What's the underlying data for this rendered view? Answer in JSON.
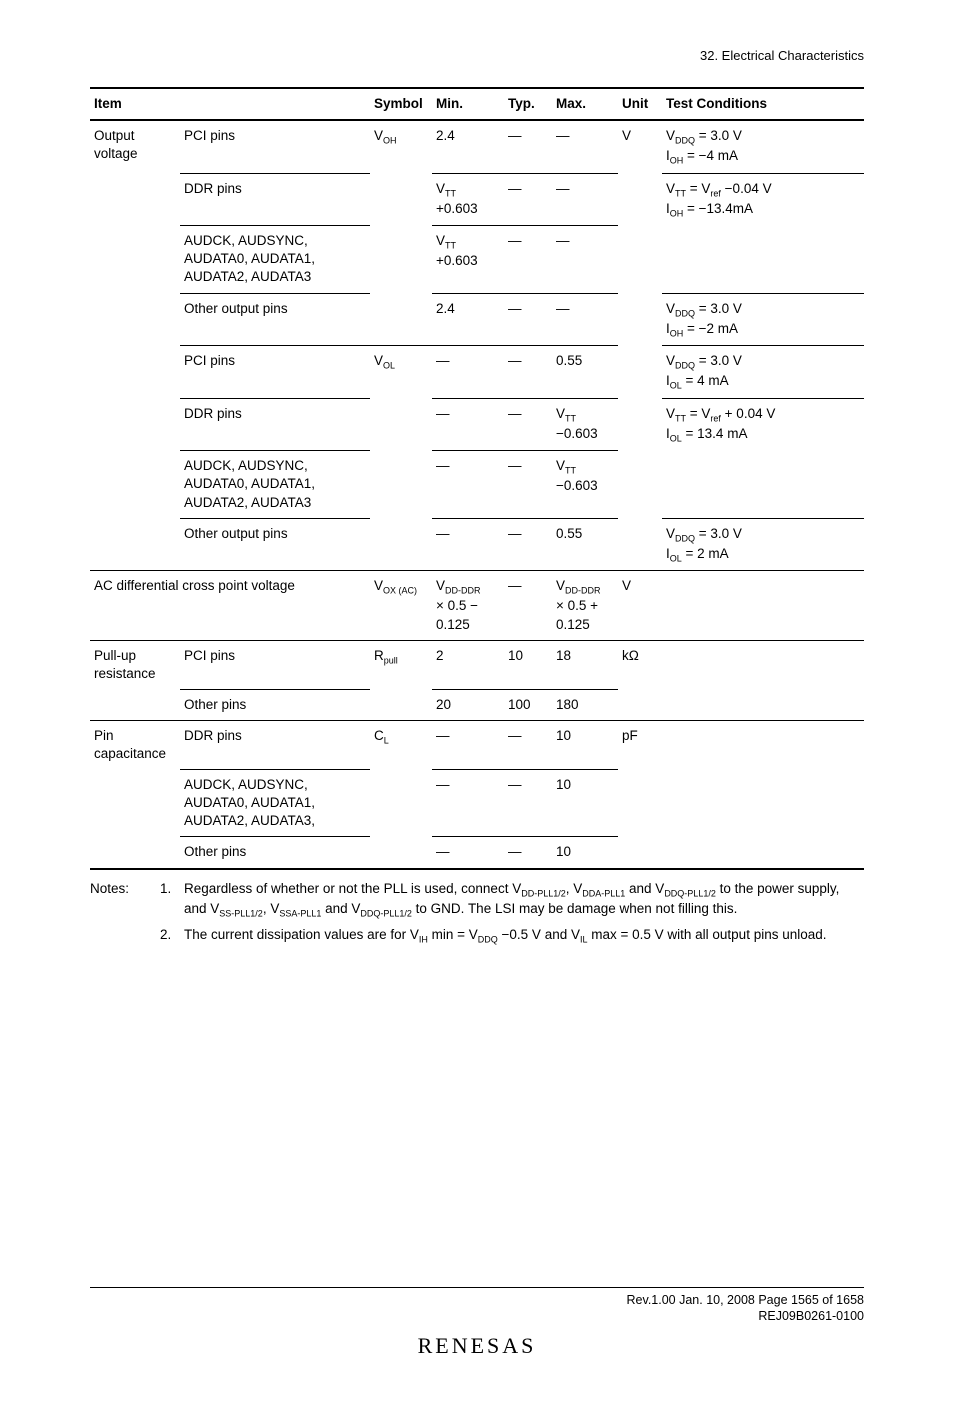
{
  "header": {
    "context": "32.   Electrical Characteristics"
  },
  "columns": [
    "Item",
    "",
    "Symbol",
    "Min.",
    "Typ.",
    "Max.",
    "Unit",
    "Test Conditions"
  ],
  "rows": [
    {
      "item": "Output voltage",
      "desc": "PCI pins",
      "sym": "V<sub>OH</sub>",
      "min": "2.4",
      "typ": "—",
      "max": "—",
      "unit": "V",
      "cond": "V<sub>DDQ</sub> = 3.0 V<br>I<sub>OH</sub> = −4 mA",
      "top": "thick"
    },
    {
      "item": "",
      "desc": "DDR pins",
      "sym": "",
      "min": "V<sub>TT</sub><br>+0.603",
      "typ": "—",
      "max": "—",
      "unit": "",
      "cond": "V<sub>TT</sub> = V<sub>ref</sub> −0.04 V<br>I<sub>OH</sub> = −13.4mA",
      "top": "thin",
      "cells": "desc,min,typ,max,cond"
    },
    {
      "item": "",
      "desc": "AUDCK, AUDSYNC, AUDATA0, AUDATA1, AUDATA2, AUDATA3",
      "sym": "",
      "min": "V<sub>TT</sub><br>+0.603",
      "typ": "—",
      "max": "—",
      "unit": "",
      "cond": "",
      "top": "thin",
      "cells": "desc,min,typ,max"
    },
    {
      "item": "",
      "desc": "Other output pins",
      "sym": "",
      "min": "2.4",
      "typ": "—",
      "max": "—",
      "unit": "",
      "cond": "V<sub>DDQ</sub> = 3.0 V<br>I<sub>OH</sub> = −2 mA",
      "top": "thin",
      "cells": "desc,min,typ,max,cond"
    },
    {
      "item": "",
      "desc": "PCI pins",
      "sym": "V<sub>OL</sub>",
      "min": "—",
      "typ": "—",
      "max": "0.55",
      "unit": "",
      "cond": "V<sub>DDQ</sub> = 3.0 V<br>I<sub>OL</sub> = 4 mA",
      "top": "thin",
      "cells": "desc,sym,min,typ,max,cond"
    },
    {
      "item": "",
      "desc": "DDR pins",
      "sym": "",
      "min": "—",
      "typ": "—",
      "max": "V<sub>TT</sub><br>−0.603",
      "unit": "",
      "cond": "V<sub>TT</sub> = V<sub>ref</sub> + 0.04 V<br>I<sub>OL</sub> = 13.4 mA",
      "top": "thin",
      "cells": "desc,min,typ,max,cond"
    },
    {
      "item": "",
      "desc": "AUDCK, AUDSYNC, AUDATA0, AUDATA1, AUDATA2, AUDATA3",
      "sym": "",
      "min": "—",
      "typ": "—",
      "max": "V<sub>TT</sub><br>−0.603",
      "unit": "",
      "cond": "",
      "top": "thin",
      "cells": "desc,min,typ,max"
    },
    {
      "item": "",
      "desc": "Other output pins",
      "sym": "",
      "min": "—",
      "typ": "—",
      "max": "0.55",
      "unit": "",
      "cond": "V<sub>DDQ</sub> = 3.0 V<br>I<sub>OL</sub> = 2 mA",
      "top": "thin",
      "cells": "desc,min,typ,max,cond"
    },
    {
      "item": "AC differential cross point voltage",
      "desc": "",
      "span_desc": true,
      "sym": "V<sub>OX (AC)</sub>",
      "min": "V<sub>DD-DDR</sub><br>× 0.5 −<br>0.125",
      "typ": "—",
      "max": "V<sub>DD-DDR</sub><br>× 0.5 +<br>0.125",
      "unit": "V",
      "cond": "",
      "top": "thin"
    },
    {
      "item": "Pull-up resistance",
      "desc": "PCI pins",
      "sym": "R<sub>pull</sub>",
      "min": "2",
      "typ": "10",
      "max": "18",
      "unit": "kΩ",
      "cond": "",
      "top": "thin"
    },
    {
      "item": "",
      "desc": "Other pins",
      "sym": "",
      "min": "20",
      "typ": "100",
      "max": "180",
      "unit": "",
      "cond": "",
      "top": "thin",
      "cells": "desc,min,typ,max"
    },
    {
      "item": "Pin capacitance",
      "desc": "DDR pins",
      "sym": "C<sub>L</sub>",
      "min": "—",
      "typ": "—",
      "max": "10",
      "unit": "pF",
      "cond": "",
      "top": "thin"
    },
    {
      "item": "",
      "desc": "AUDCK, AUDSYNC, AUDATA0, AUDATA1, AUDATA2, AUDATA3,",
      "sym": "",
      "min": "—",
      "typ": "—",
      "max": "10",
      "unit": "",
      "cond": "",
      "top": "thin",
      "cells": "desc,min,typ,max"
    },
    {
      "item": "",
      "desc": "Other pins",
      "sym": "",
      "min": "—",
      "typ": "—",
      "max": "10",
      "unit": "",
      "cond": "",
      "top": "thin",
      "cells": "desc,min,typ,max",
      "bottom": "thick"
    }
  ],
  "notes": [
    {
      "label": "Notes:",
      "num": "1.",
      "body": "Regardless of whether or not the PLL is used, connect V<sub>DD-PLL1/2</sub>, V<sub>DDA-PLL1</sub> and V<sub>DDQ-PLL1/2</sub> to the power supply, and V<sub>SS-PLL1/2</sub>, V<sub>SSA-PLL1</sub> and V<sub>DDQ-PLL1/2</sub> to GND. The LSI may be damage when not filling this."
    },
    {
      "label": "",
      "num": "2.",
      "body": "The current dissipation values are for V<sub>IH</sub> min = V<sub>DDQ</sub> −0.5 V and V<sub>IL</sub> max = 0.5 V with all output pins unload."
    }
  ],
  "footer": {
    "line1": "Rev.1.00  Jan. 10, 2008  Page 1565 of 1658",
    "line2": "REJ09B0261-0100",
    "logo": "RENESAS"
  }
}
